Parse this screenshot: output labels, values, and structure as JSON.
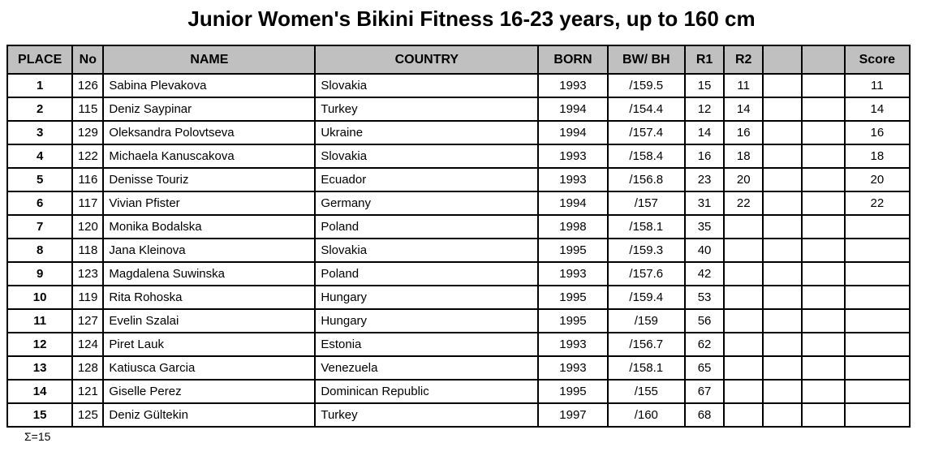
{
  "title": "Junior Women's Bikini Fitness 16-23 years, up to 160 cm",
  "colors": {
    "header_bg": "#c0c0c0",
    "border": "#000000",
    "background": "#ffffff"
  },
  "table": {
    "columns": [
      {
        "key": "place",
        "label": "PLACE"
      },
      {
        "key": "no",
        "label": "No"
      },
      {
        "key": "name",
        "label": "NAME"
      },
      {
        "key": "country",
        "label": "COUNTRY"
      },
      {
        "key": "born",
        "label": "BORN"
      },
      {
        "key": "bwbh",
        "label": "BW/ BH"
      },
      {
        "key": "r1",
        "label": "R1"
      },
      {
        "key": "r2",
        "label": "R2"
      },
      {
        "key": "extra1",
        "label": ""
      },
      {
        "key": "extra2",
        "label": ""
      },
      {
        "key": "score",
        "label": "Score"
      }
    ],
    "rows": [
      [
        "1",
        "126",
        "Sabina Plevakova",
        "Slovakia",
        "1993",
        "/159.5",
        "15",
        "11",
        "",
        "",
        "11"
      ],
      [
        "2",
        "115",
        "Deniz Saypinar",
        "Turkey",
        "1994",
        "/154.4",
        "12",
        "14",
        "",
        "",
        "14"
      ],
      [
        "3",
        "129",
        "Oleksandra Polovtseva",
        "Ukraine",
        "1994",
        "/157.4",
        "14",
        "16",
        "",
        "",
        "16"
      ],
      [
        "4",
        "122",
        "Michaela Kanuscakova",
        "Slovakia",
        "1993",
        "/158.4",
        "16",
        "18",
        "",
        "",
        "18"
      ],
      [
        "5",
        "116",
        "Denisse Touriz",
        "Ecuador",
        "1993",
        "/156.8",
        "23",
        "20",
        "",
        "",
        "20"
      ],
      [
        "6",
        "117",
        "Vivian Pfister",
        "Germany",
        "1994",
        "/157",
        "31",
        "22",
        "",
        "",
        "22"
      ],
      [
        "7",
        "120",
        "Monika Bodalska",
        "Poland",
        "1998",
        "/158.1",
        "35",
        "",
        "",
        "",
        ""
      ],
      [
        "8",
        "118",
        "Jana Kleinova",
        "Slovakia",
        "1995",
        "/159.3",
        "40",
        "",
        "",
        "",
        ""
      ],
      [
        "9",
        "123",
        "Magdalena Suwinska",
        "Poland",
        "1993",
        "/157.6",
        "42",
        "",
        "",
        "",
        ""
      ],
      [
        "10",
        "119",
        "Rita Rohoska",
        "Hungary",
        "1995",
        "/159.4",
        "53",
        "",
        "",
        "",
        ""
      ],
      [
        "11",
        "127",
        "Evelin Szalai",
        "Hungary",
        "1995",
        "/159",
        "56",
        "",
        "",
        "",
        ""
      ],
      [
        "12",
        "124",
        "Piret Lauk",
        "Estonia",
        "1993",
        "/156.7",
        "62",
        "",
        "",
        "",
        ""
      ],
      [
        "13",
        "128",
        "Katiusca Garcia",
        "Venezuela",
        "1993",
        "/158.1",
        "65",
        "",
        "",
        "",
        ""
      ],
      [
        "14",
        "121",
        "Giselle Perez",
        "Dominican Republic",
        "1995",
        "/155",
        "67",
        "",
        "",
        "",
        ""
      ],
      [
        "15",
        "125",
        "Deniz Gültekin",
        "Turkey",
        "1997",
        "/160",
        "68",
        "",
        "",
        "",
        ""
      ]
    ],
    "footer": "Σ=15"
  }
}
